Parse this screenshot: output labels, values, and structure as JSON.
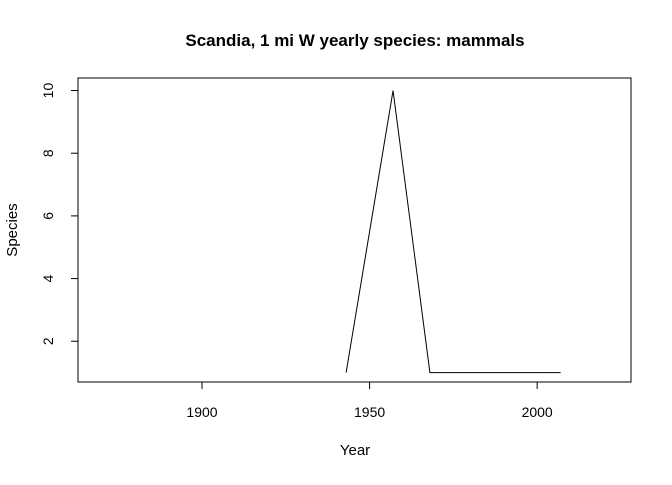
{
  "chart_data": {
    "type": "line",
    "title": "Scandia, 1 mi W yearly species: mammals",
    "xlabel": "Year",
    "ylabel": "Species",
    "xlim": [
      1863,
      2028
    ],
    "ylim": [
      0.7,
      10.4
    ],
    "x_ticks": [
      1900,
      1950,
      2000
    ],
    "y_ticks": [
      2,
      4,
      6,
      8,
      10
    ],
    "grid": false,
    "series": [
      {
        "x": [
          1943,
          1957,
          1968,
          2007
        ],
        "y": [
          1,
          10,
          1,
          1
        ]
      }
    ]
  }
}
